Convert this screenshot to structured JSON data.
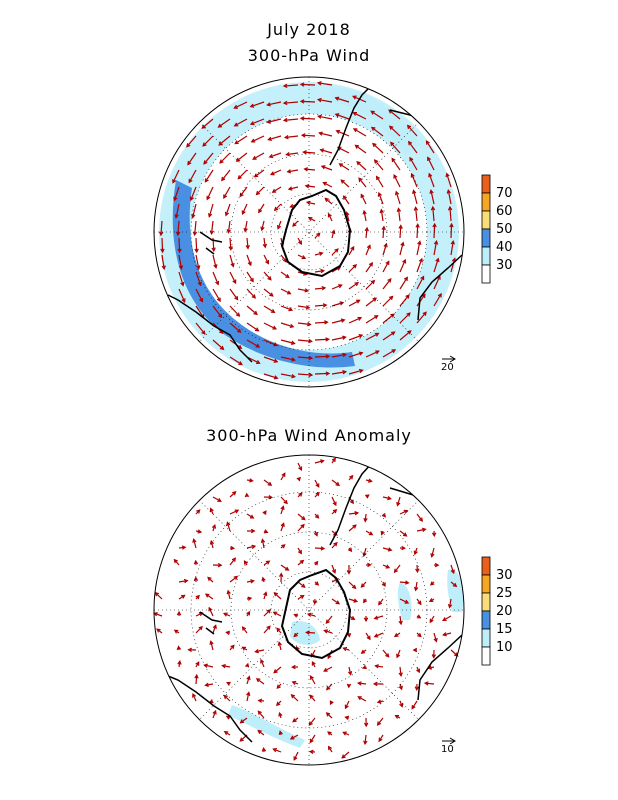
{
  "titles": {
    "month": "July 2018",
    "panel1": "300-hPa Wind",
    "panel2": "300-hPa Wind Anomaly"
  },
  "panel1": {
    "colorbar_labels": [
      "70",
      "60",
      "50",
      "40",
      "30"
    ],
    "colorbar_colors": [
      "#e8601c",
      "#f5a623",
      "#f9dd7a",
      "#4a90e2",
      "#bdeefa",
      "#ffffff"
    ],
    "reference_vector_label": "20"
  },
  "panel2": {
    "colorbar_labels": [
      "30",
      "25",
      "20",
      "15",
      "10"
    ],
    "colorbar_colors": [
      "#e8601c",
      "#f5a623",
      "#f9dd7a",
      "#4a90e2",
      "#bdeefa",
      "#ffffff"
    ],
    "reference_vector_label": "10"
  },
  "colors": {
    "vector": "#b00000",
    "coast": "#000000",
    "grid": "#000000"
  }
}
